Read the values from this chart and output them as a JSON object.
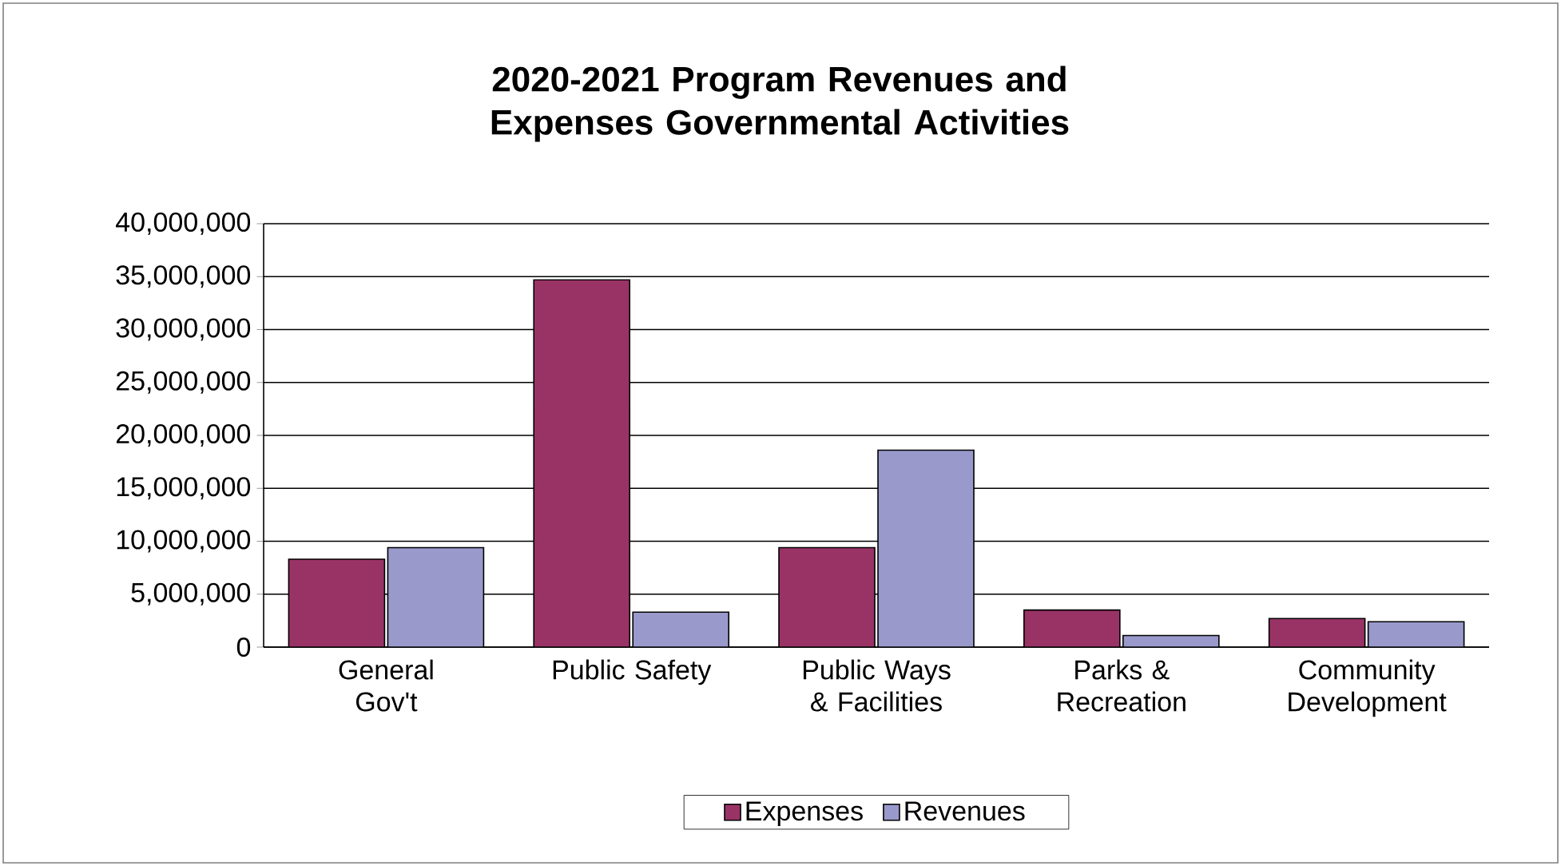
{
  "chart_data": {
    "type": "bar",
    "title": "2020-2021 Program Revenues and Expenses Governmental Activities",
    "categories": [
      "General Gov't",
      "Public Safety",
      "Public Ways & Facilities",
      "Parks & Recreation",
      "Community Development"
    ],
    "series": [
      {
        "name": "Expenses",
        "color": "#993366",
        "values": [
          8300000,
          34700000,
          9400000,
          3500000,
          2700000
        ]
      },
      {
        "name": "Revenues",
        "color": "#9999cc",
        "values": [
          9400000,
          3300000,
          18600000,
          1100000,
          2400000
        ]
      }
    ],
    "ylim": [
      0,
      40000000
    ],
    "yticks": [
      {
        "value": 0,
        "label": "0"
      },
      {
        "value": 5000000,
        "label": "5,000,000"
      },
      {
        "value": 10000000,
        "label": "10,000,000"
      },
      {
        "value": 15000000,
        "label": "15,000,000"
      },
      {
        "value": 20000000,
        "label": "20,000,000"
      },
      {
        "value": 25000000,
        "label": "25,000,000"
      },
      {
        "value": 30000000,
        "label": "30,000,000"
      },
      {
        "value": 35000000,
        "label": "35,000,000"
      },
      {
        "value": 40000000,
        "label": "40,000,000"
      }
    ],
    "grid": "y",
    "legend": "bottom"
  }
}
